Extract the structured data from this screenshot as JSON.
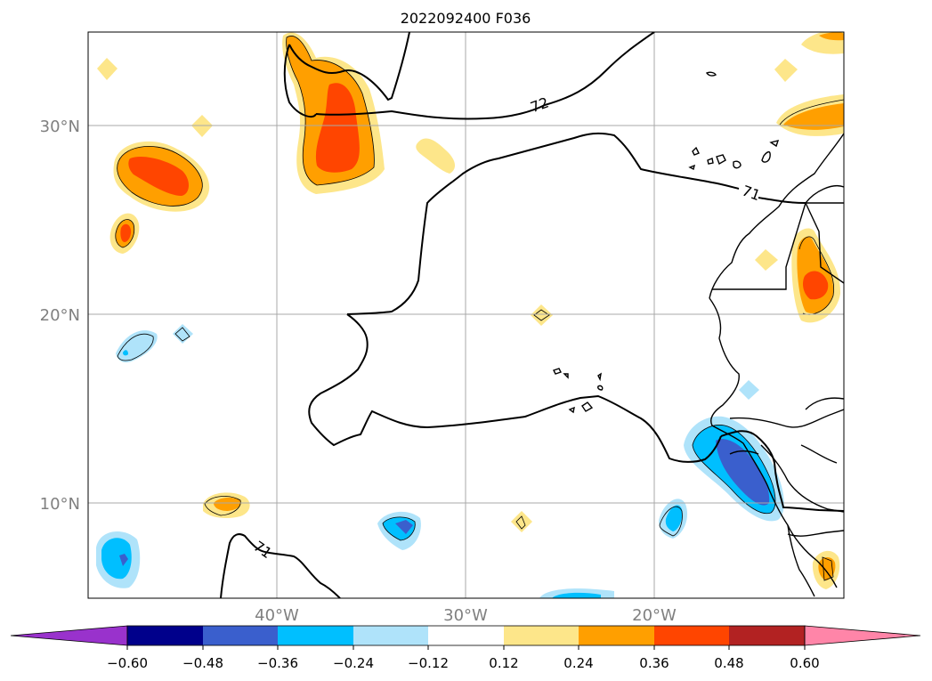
{
  "title": "2022092400 F036",
  "map": {
    "lat_labels": [
      "30°N",
      "20°N",
      "10°N"
    ],
    "lon_labels": [
      "40°W",
      "30°W",
      "20°W"
    ],
    "contour_labels": [
      "72",
      "71",
      "71"
    ]
  },
  "colorbar": {
    "ticks": [
      "−0.60",
      "−0.48",
      "−0.36",
      "−0.24",
      "−0.12",
      "0.12",
      "0.24",
      "0.36",
      "0.48",
      "0.60"
    ],
    "colors": [
      "#9932cc",
      "#00008b",
      "#3a5fcd",
      "#00bfff",
      "#afe3fa",
      "#ffffff",
      "#fde68a",
      "#ff9f00",
      "#ff4500",
      "#b22222",
      "#ff85a8"
    ]
  },
  "colors": {
    "light_yellow": "#fde68a",
    "orange": "#ff9f00",
    "red_orange": "#ff4500",
    "light_blue": "#afe3fa",
    "deep_sky_blue": "#00bfff",
    "royal_blue": "#3a5fcd",
    "grid": "#a9a9a9",
    "axis_label": "#808080"
  }
}
